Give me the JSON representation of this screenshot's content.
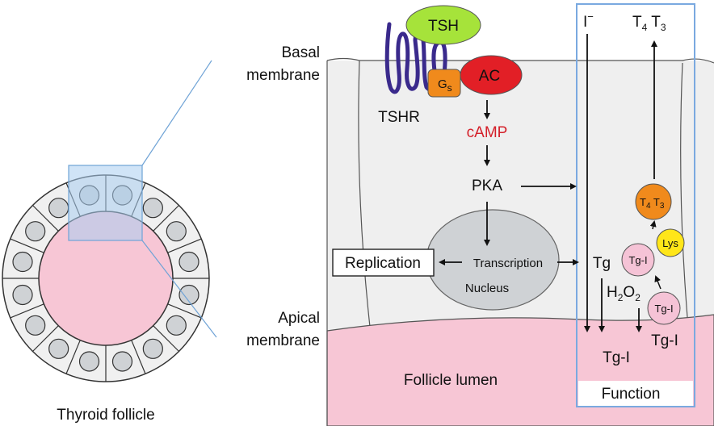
{
  "labels": {
    "basal_line1": "Basal",
    "basal_line2": "membrane",
    "apical_line1": "Apical",
    "apical_line2": "membrane",
    "thyroid_follicle": "Thyroid follicle",
    "tsh": "TSH",
    "tshr": "TSHR",
    "gs_main": "G",
    "gs_sub": "s",
    "ac": "AC",
    "camp": "cAMP",
    "pka": "PKA",
    "replication": "Replication",
    "transcription": "Transcription",
    "nucleus": "Nucleus",
    "follicle_lumen": "Follicle lumen",
    "function": "Function",
    "iodide_main": "I",
    "iodide_sup": "−",
    "t4t3_top_t": "T",
    "t4t3_top_4": "4",
    "t4t3_top_t2": " T",
    "t4t3_top_3": "3",
    "tg": "Tg",
    "tgi_bubble1": "Tg-I",
    "tgi_bubble2": "Tg-I",
    "lys": "Lys",
    "t4t3_bubble_t": "T",
    "t4t3_bubble_4": "4",
    "t4t3_bubble_t2": " T",
    "t4t3_bubble_3": "3",
    "h2o2_h": "H",
    "h2o2_2a": "2",
    "h2o2_o": "O",
    "h2o2_2b": "2",
    "tgi_right": "Tg-I",
    "tgi_bottom": "Tg-I"
  },
  "colors": {
    "tsh": "#a6e33a",
    "ac": "#e21f26",
    "gs": "#f08a1c",
    "tshr": "#3a2a8c",
    "camp_text": "#d4202a",
    "lumen": "#f7c6d5",
    "cell": "#efefef",
    "nucleus": "#cfd2d5",
    "function_box": "#7aa9e0",
    "highlight": "#a9cdf0",
    "lys": "#ffe619",
    "t4t3_bubble": "#f08a1c",
    "tgi_bubble": "#f5c3d6"
  }
}
